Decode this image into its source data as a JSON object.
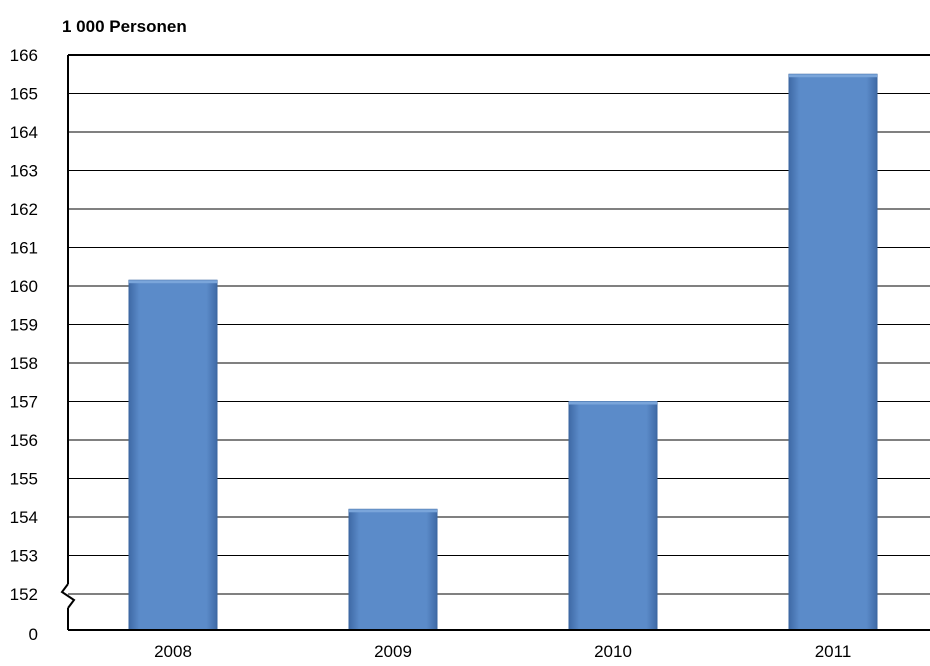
{
  "chart_data": {
    "type": "bar",
    "title": "",
    "unit_label": "1 000 Personen",
    "xlabel": "",
    "ylabel": "",
    "categories": [
      "2008",
      "2009",
      "2010",
      "2011"
    ],
    "values": [
      160.15,
      154.2,
      157.0,
      165.5
    ],
    "ylim": [
      151.5,
      166
    ],
    "yticks": [
      166,
      165,
      164,
      163,
      162,
      161,
      160,
      159,
      158,
      157,
      156,
      155,
      154,
      153,
      152
    ],
    "axis_break": true,
    "axis_origin_label": "0",
    "grid": true,
    "legend": "none",
    "colors": {
      "bar_fill": "#5b8bc9",
      "bar_edge": "#3a66a0",
      "grid": "#000000"
    }
  }
}
